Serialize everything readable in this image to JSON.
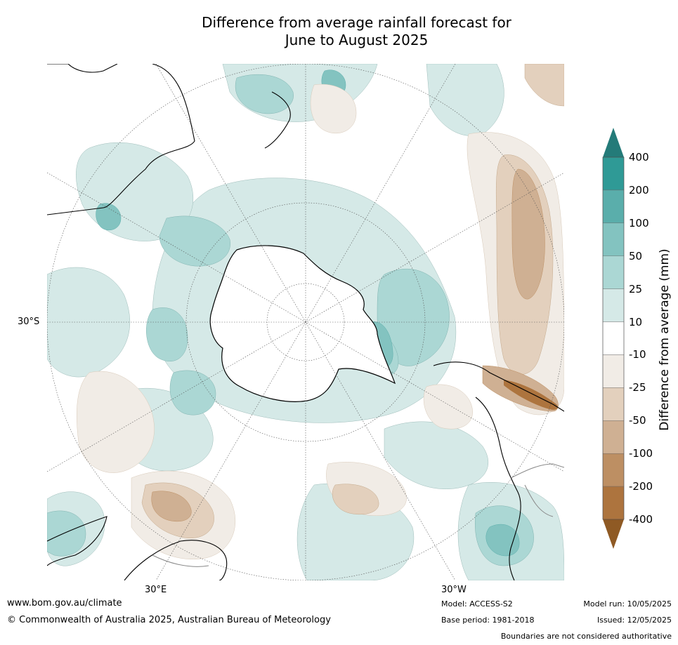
{
  "title": {
    "line1": "Difference from average rainfall forecast for",
    "line2": "June to August 2025"
  },
  "map": {
    "projection": "south-polar-stereographic",
    "lat_label": "30°S",
    "lon_labels": {
      "east": "30°E",
      "west": "30°W"
    }
  },
  "colorbar": {
    "label": "Difference from average (mm)",
    "ticks": [
      "400",
      "200",
      "100",
      "50",
      "25",
      "10",
      "-10",
      "-25",
      "-50",
      "-100",
      "-200",
      "-400"
    ],
    "colors": {
      "gt400": "#247b79",
      "200_400": "#2f9a96",
      "100_200": "#5aaeab",
      "50_100": "#83c3c0",
      "25_50": "#abd7d4",
      "10_25": "#d5e9e7",
      "neutral": "#ffffff",
      "m10_m25": "#f1ece6",
      "m25_m50": "#e3d0bd",
      "m50_m100": "#cfb093",
      "m100_m200": "#bd8f63",
      "m200_m400": "#ad743e",
      "lt_m400": "#8f5a24"
    }
  },
  "footer": {
    "website": "www.bom.gov.au/climate",
    "copyright": "© Commonwealth of Australia 2025, Australian Bureau of Meteorology",
    "model": "Model: ACCESS-S2",
    "base_period": "Base period: 1981-2018",
    "model_run": "Model run: 10/05/2025",
    "issued": "Issued: 12/05/2025",
    "disclaimer": "Boundaries are not considered authoritative"
  }
}
